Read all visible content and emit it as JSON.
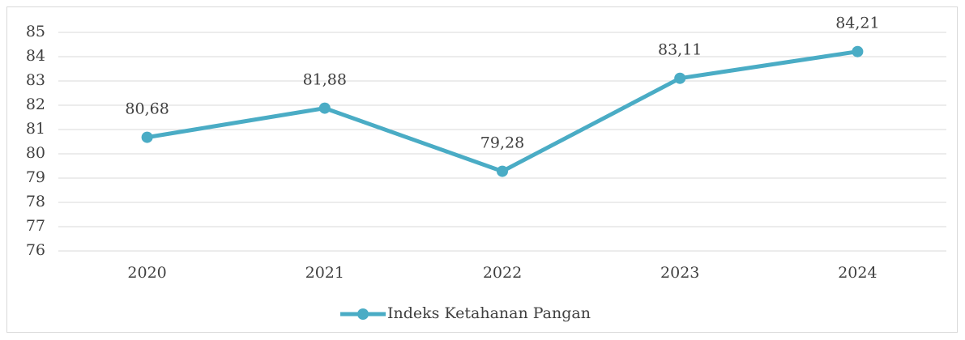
{
  "chart_data": {
    "type": "line",
    "categories": [
      "2020",
      "2021",
      "2022",
      "2023",
      "2024"
    ],
    "series": [
      {
        "name": "Indeks Ketahanan Pangan",
        "color": "#4aacc5",
        "values": [
          80.68,
          81.88,
          79.28,
          83.11,
          84.21
        ],
        "value_labels": [
          "80,68",
          "81,88",
          "79,28",
          "83,11",
          "84,21"
        ]
      }
    ],
    "ylim": [
      76,
      85
    ],
    "yticks": [
      76,
      77,
      78,
      79,
      80,
      81,
      82,
      83,
      84,
      85
    ],
    "grid": true,
    "legend": "bottom"
  }
}
